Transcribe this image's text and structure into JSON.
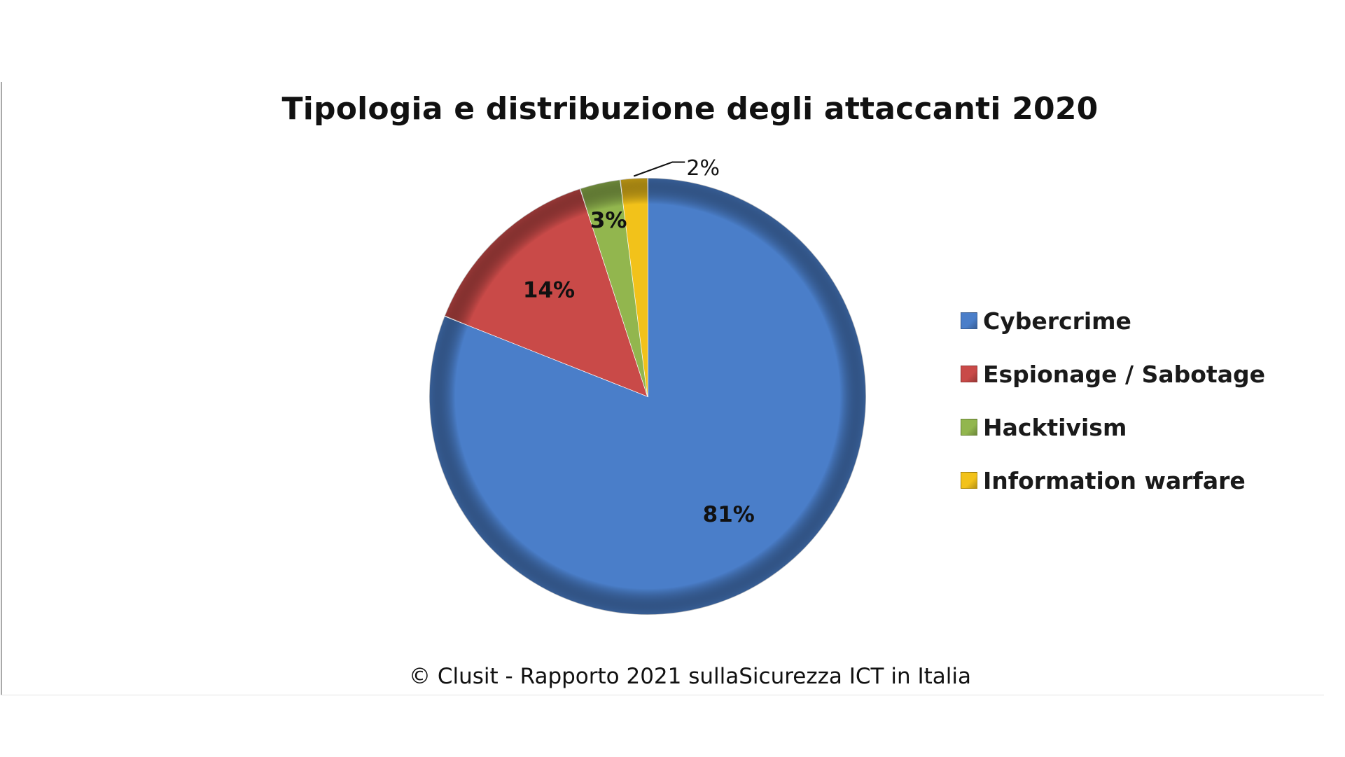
{
  "chart_data": {
    "type": "pie",
    "title": "Tipologia  e distribuzione degli attaccanti 2020",
    "categories": [
      "Cybercrime",
      "Espionage / Sabotage",
      "Hacktivism",
      "Information warfare"
    ],
    "values": [
      81,
      14,
      3,
      2
    ],
    "data_labels": [
      "81%",
      "14%",
      "3%",
      "2%"
    ],
    "colors": [
      "#4a7ec9",
      "#c94a48",
      "#92b64e",
      "#f2c21a"
    ],
    "legend_position": "right"
  },
  "footer": {
    "source": "© Clusit - Rapporto 2021 sullaSicurezza ICT in Italia"
  }
}
